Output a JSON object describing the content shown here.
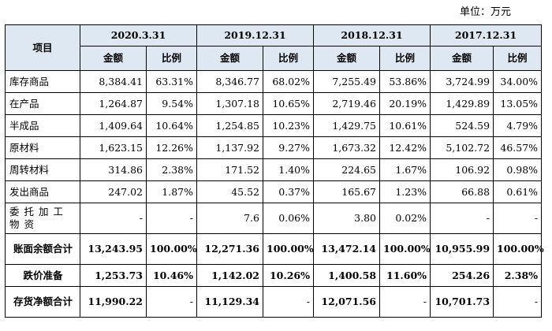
{
  "unit_label": "单位：万元",
  "header": {
    "item_label": "项目",
    "periods": [
      "2020.3.31",
      "2019.12.31",
      "2018.12.31",
      "2017.12.31"
    ],
    "amount_label": "金额",
    "ratio_label": "比例"
  },
  "rows": [
    {
      "label": "库存商品",
      "cells": [
        "8,384.41",
        "63.31%",
        "8,346.77",
        "68.02%",
        "7,255.49",
        "53.86%",
        "3,724.99",
        "34.00%"
      ]
    },
    {
      "label": "在产品",
      "cells": [
        "1,264.87",
        "9.54%",
        "1,307.18",
        "10.65%",
        "2,719.46",
        "20.19%",
        "1,429.89",
        "13.05%"
      ]
    },
    {
      "label": "半成品",
      "cells": [
        "1,409.64",
        "10.64%",
        "1,254.85",
        "10.23%",
        "1,429.75",
        "10.61%",
        "524.59",
        "4.79%"
      ]
    },
    {
      "label": "原材料",
      "cells": [
        "1,623.15",
        "12.26%",
        "1,137.92",
        "9.27%",
        "1,673.32",
        "12.42%",
        "5,102.72",
        "46.57%"
      ]
    },
    {
      "label": "周转材料",
      "cells": [
        "314.86",
        "2.38%",
        "171.52",
        "1.40%",
        "224.65",
        "1.67%",
        "106.92",
        "0.98%"
      ]
    },
    {
      "label": "发出商品",
      "cells": [
        "247.02",
        "1.87%",
        "45.52",
        "0.37%",
        "165.67",
        "1.23%",
        "66.88",
        "0.61%"
      ]
    },
    {
      "label": "委托加工物资",
      "cells": [
        "-",
        "-",
        "7.6",
        "0.06%",
        "3.80",
        "0.02%",
        "-",
        "-"
      ]
    },
    {
      "label": "账面余额合计",
      "cells": [
        "13,243.95",
        "100.00%",
        "12,271.36",
        "100.00%",
        "13,472.14",
        "100.00%",
        "10,955.99",
        "100.00%"
      ]
    },
    {
      "label": "跌价准备",
      "cells": [
        "1,253.73",
        "10.46%",
        "1,142.02",
        "10.26%",
        "1,400.58",
        "11.60%",
        "254.26",
        "2.38%"
      ]
    },
    {
      "label": "存货净额合计",
      "cells": [
        "11,990.22",
        "-",
        "11,129.34",
        "-",
        "12,071.56",
        "-",
        "10,701.73",
        "-"
      ]
    }
  ]
}
